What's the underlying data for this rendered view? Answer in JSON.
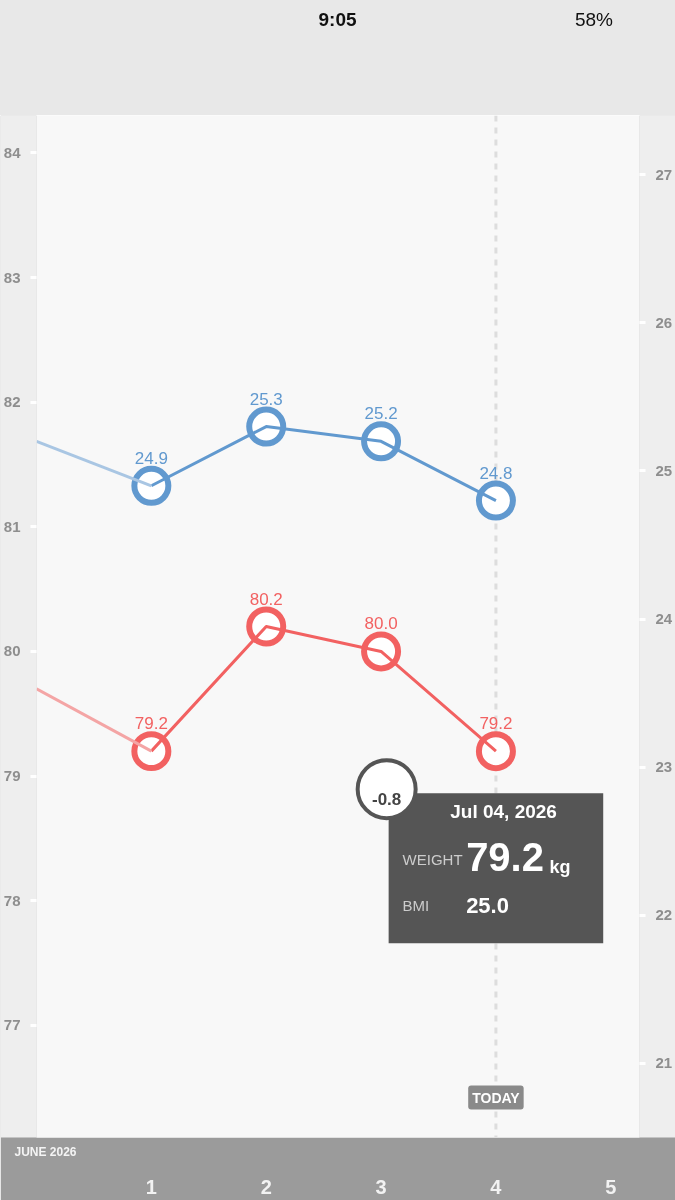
{
  "chart_data": {
    "type": "line",
    "x": [
      "2026-07-01",
      "2026-07-02",
      "2026-07-03",
      "2026-07-04"
    ],
    "xlim": [
      "2026-06-30",
      "2026-07-05T06:00"
    ],
    "xticks": [
      {
        "value": "2026-07-01",
        "label": "1"
      },
      {
        "value": "2026-07-02",
        "label": "2"
      },
      {
        "value": "2026-07-03",
        "label": "3"
      },
      {
        "value": "2026-07-04",
        "label": "4"
      },
      {
        "value": "2026-07-05",
        "label": "5"
      }
    ],
    "ylim": [
      76.1,
      84.3
    ],
    "yticks": [
      77,
      78,
      79,
      80,
      81,
      82,
      83,
      84
    ],
    "y2lim": [
      20.5,
      27.4
    ],
    "y2ticks": [
      21,
      22,
      23,
      24,
      25,
      26,
      27
    ],
    "grid": false,
    "marker": "circle",
    "line_style": "solid",
    "series": [
      {
        "color": "#f26161",
        "values": [
          79.2,
          80.2,
          80.0,
          79.2
        ],
        "value_labels": [
          "79.2",
          "80.2",
          "80.0",
          "79.2"
        ]
      },
      {
        "color": "#6199cf",
        "axis": "y2",
        "values": [
          24.9,
          25.3,
          25.2,
          24.8
        ],
        "value_labels": [
          "24.9",
          "25.3",
          "25.2",
          "24.8"
        ]
      },
      {
        "type": "line",
        "marker": "none",
        "x": [
          "2026-06-30",
          "2026-07-01"
        ],
        "color": "#f4a5a5",
        "values": [
          79.7,
          79.2
        ]
      },
      {
        "type": "line",
        "marker": "none",
        "axis": "y2",
        "x": [
          "2026-06-30",
          "2026-07-01"
        ],
        "color": "#a9c6e3",
        "values": [
          25.2,
          24.9
        ]
      }
    ],
    "ref_lines": [
      {
        "axis": "x",
        "value": "2026-07-04",
        "label": "TODAY",
        "color": "#dddddd",
        "line_style": "dashed"
      }
    ],
    "annotations": [
      "9:05",
      "58%",
      "JUNE 2026",
      "Jul 04, 2026",
      "-0.8",
      "WEIGHT",
      "79.2",
      "kg",
      "BMI",
      "25.0"
    ]
  }
}
